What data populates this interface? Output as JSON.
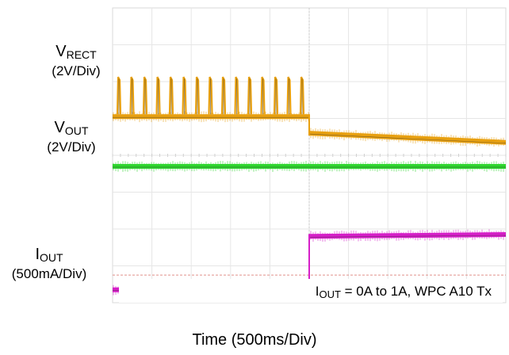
{
  "chart_data": {
    "type": "line",
    "xlabel": "Time (500ms/Div)",
    "annotation": {
      "sym": "I",
      "sub": "OUT",
      "rest": " = 0A to 1A, WPC A10 Tx"
    },
    "x_divisions": 10,
    "y_divisions": 8,
    "grid": true,
    "step_time_div": 5,
    "channels": [
      {
        "sym": "V",
        "sub": "RECT",
        "scale": "(2V/Div)",
        "color": "#e8a010",
        "before_div": 5.05,
        "after_div": [
          4.6,
          4.35
        ],
        "pulses": true
      },
      {
        "sym": "V",
        "sub": "OUT",
        "scale": "(2V/Div)",
        "color": "#2ed62e",
        "before_div": 3.7,
        "after_div": [
          3.7,
          3.7
        ],
        "pulses": false
      },
      {
        "sym": "I",
        "sub": "OUT",
        "scale": "(500mA/Div)",
        "color": "#d61fc8",
        "before_div": 0.35,
        "after_div": [
          1.8,
          1.85
        ],
        "pulses": false
      }
    ],
    "ref_line_div": 0.75,
    "ref_line_color": "#e0908a"
  }
}
